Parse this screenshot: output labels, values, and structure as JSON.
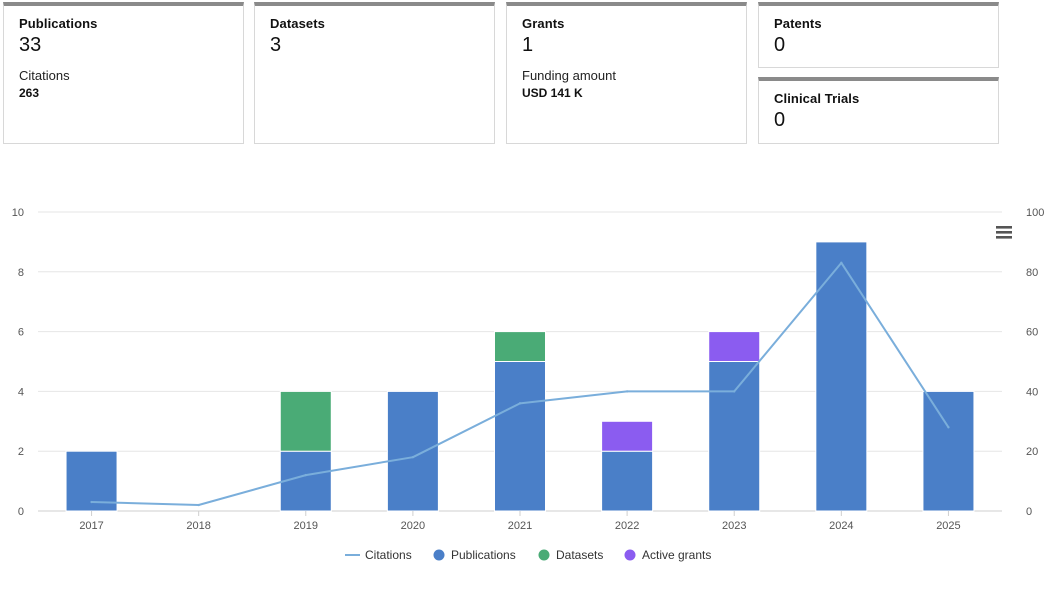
{
  "cards": {
    "publications": {
      "label": "Publications",
      "value": "33",
      "sub_label": "Citations",
      "sub_value": "263"
    },
    "datasets": {
      "label": "Datasets",
      "value": "3"
    },
    "grants": {
      "label": "Grants",
      "value": "1",
      "sub_label": "Funding amount",
      "sub_value": "USD 141 K"
    },
    "patents": {
      "label": "Patents",
      "value": "0"
    },
    "clinical_trials": {
      "label": "Clinical Trials",
      "value": "0"
    }
  },
  "chart_data": {
    "type": "bar",
    "stacked": true,
    "categories": [
      "2017",
      "2018",
      "2019",
      "2020",
      "2021",
      "2022",
      "2023",
      "2024",
      "2025"
    ],
    "series": [
      {
        "name": "Publications",
        "type": "bar",
        "axis": "left",
        "color": "#4a7fc8",
        "values": [
          2,
          0,
          2,
          4,
          5,
          2,
          5,
          9,
          4
        ]
      },
      {
        "name": "Datasets",
        "type": "bar",
        "axis": "left",
        "color": "#4aab76",
        "values": [
          0,
          0,
          2,
          0,
          1,
          0,
          0,
          0,
          0
        ]
      },
      {
        "name": "Active grants",
        "type": "bar",
        "axis": "left",
        "color": "#8b5cf0",
        "values": [
          0,
          0,
          0,
          0,
          0,
          1,
          1,
          0,
          0
        ]
      },
      {
        "name": "Citations",
        "type": "line",
        "axis": "right",
        "color": "#7aaedb",
        "values": [
          3,
          2,
          12,
          18,
          36,
          40,
          40,
          83,
          28
        ]
      }
    ],
    "y_left": {
      "min": 0,
      "max": 10,
      "ticks": [
        "0",
        "2",
        "4",
        "6",
        "8",
        "10"
      ]
    },
    "y_right": {
      "min": 0,
      "max": 100,
      "ticks": [
        "0",
        "20",
        "40",
        "60",
        "80",
        "100"
      ]
    },
    "legend": [
      "Citations",
      "Publications",
      "Datasets",
      "Active grants"
    ],
    "legend_position": "bottom-center",
    "grid": true
  }
}
